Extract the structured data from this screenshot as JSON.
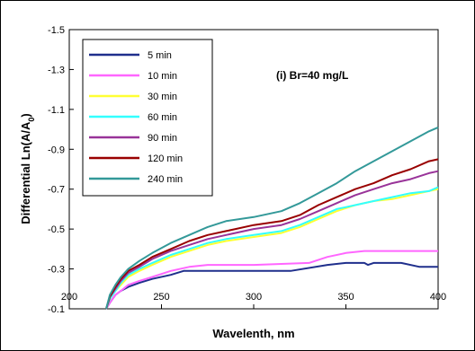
{
  "chart_data": {
    "type": "line",
    "title": "",
    "annotation": "(i) Br=40 mg/L",
    "xlabel": "Wavelenth, nm",
    "ylabel_main": "Differential  Ln(A/A",
    "ylabel_sub": "0",
    "ylabel_end": ")",
    "xlim": [
      200,
      400
    ],
    "ylim": [
      -1.5,
      -0.1
    ],
    "y_inverted": true,
    "x_ticks": [
      {
        "value": 200,
        "label": "200"
      },
      {
        "value": 250,
        "label": "250"
      },
      {
        "value": 300,
        "label": "300"
      },
      {
        "value": 350,
        "label": "350"
      },
      {
        "value": 400,
        "label": "400"
      }
    ],
    "y_ticks": [
      {
        "value": -1.5,
        "label": "-1.5"
      },
      {
        "value": -1.3,
        "label": "-1.3"
      },
      {
        "value": -1.1,
        "label": "-1.1"
      },
      {
        "value": -0.9,
        "label": "-0.9"
      },
      {
        "value": -0.7,
        "label": "-0.7"
      },
      {
        "value": -0.5,
        "label": "-0.5"
      },
      {
        "value": -0.3,
        "label": "-0.3"
      },
      {
        "value": -0.1,
        "label": "-0.1"
      }
    ],
    "grid": false,
    "legend_position": "top-left",
    "series": [
      {
        "name": "5 min",
        "color": "#1f2f8c",
        "x": [
          220,
          222,
          225,
          228,
          232,
          238,
          245,
          255,
          262,
          270,
          300,
          320,
          340,
          350,
          360,
          362,
          365,
          380,
          390,
          400
        ],
        "y": [
          -0.08,
          -0.13,
          -0.17,
          -0.19,
          -0.21,
          -0.23,
          -0.25,
          -0.27,
          -0.29,
          -0.29,
          -0.29,
          -0.29,
          -0.32,
          -0.33,
          -0.33,
          -0.32,
          -0.33,
          -0.33,
          -0.31,
          -0.31
        ]
      },
      {
        "name": "10 min",
        "color": "#ff66ff",
        "x": [
          220,
          222,
          225,
          228,
          232,
          238,
          245,
          255,
          265,
          275,
          290,
          300,
          330,
          340,
          350,
          360,
          380,
          400
        ],
        "y": [
          -0.08,
          -0.13,
          -0.17,
          -0.19,
          -0.22,
          -0.24,
          -0.26,
          -0.29,
          -0.31,
          -0.32,
          -0.32,
          -0.32,
          -0.33,
          -0.36,
          -0.38,
          -0.39,
          -0.39,
          -0.39
        ]
      },
      {
        "name": "30 min",
        "color": "#ffff33",
        "x": [
          220,
          222,
          225,
          228,
          232,
          238,
          245,
          255,
          265,
          275,
          285,
          300,
          315,
          325,
          335,
          345,
          355,
          365,
          375,
          385,
          395,
          400
        ],
        "y": [
          -0.08,
          -0.15,
          -0.19,
          -0.22,
          -0.26,
          -0.29,
          -0.32,
          -0.36,
          -0.39,
          -0.42,
          -0.44,
          -0.46,
          -0.48,
          -0.51,
          -0.55,
          -0.59,
          -0.62,
          -0.64,
          -0.65,
          -0.67,
          -0.69,
          -0.7
        ]
      },
      {
        "name": "60 min",
        "color": "#33ffff",
        "x": [
          220,
          222,
          225,
          228,
          232,
          238,
          245,
          255,
          265,
          275,
          285,
          300,
          315,
          325,
          335,
          345,
          355,
          365,
          375,
          385,
          395,
          400
        ],
        "y": [
          -0.08,
          -0.15,
          -0.19,
          -0.23,
          -0.27,
          -0.3,
          -0.33,
          -0.37,
          -0.4,
          -0.43,
          -0.45,
          -0.47,
          -0.49,
          -0.52,
          -0.56,
          -0.6,
          -0.62,
          -0.64,
          -0.66,
          -0.68,
          -0.69,
          -0.71
        ]
      },
      {
        "name": "90 min",
        "color": "#993399",
        "x": [
          220,
          222,
          225,
          228,
          232,
          238,
          245,
          255,
          265,
          275,
          285,
          300,
          315,
          325,
          335,
          345,
          355,
          365,
          375,
          385,
          395,
          400
        ],
        "y": [
          -0.08,
          -0.16,
          -0.2,
          -0.24,
          -0.28,
          -0.31,
          -0.35,
          -0.39,
          -0.42,
          -0.45,
          -0.47,
          -0.5,
          -0.52,
          -0.55,
          -0.59,
          -0.63,
          -0.67,
          -0.7,
          -0.73,
          -0.75,
          -0.78,
          -0.79
        ]
      },
      {
        "name": "120 min",
        "color": "#990000",
        "x": [
          220,
          222,
          225,
          228,
          232,
          238,
          245,
          255,
          265,
          275,
          285,
          300,
          315,
          325,
          335,
          345,
          355,
          365,
          375,
          385,
          395,
          400
        ],
        "y": [
          -0.08,
          -0.16,
          -0.21,
          -0.25,
          -0.29,
          -0.32,
          -0.36,
          -0.4,
          -0.44,
          -0.47,
          -0.49,
          -0.52,
          -0.54,
          -0.57,
          -0.62,
          -0.66,
          -0.7,
          -0.73,
          -0.77,
          -0.8,
          -0.84,
          -0.85
        ]
      },
      {
        "name": "240 min",
        "color": "#339999",
        "x": [
          220,
          222,
          225,
          228,
          232,
          238,
          245,
          255,
          265,
          275,
          285,
          300,
          315,
          325,
          335,
          345,
          355,
          365,
          375,
          385,
          395,
          400
        ],
        "y": [
          -0.08,
          -0.17,
          -0.22,
          -0.26,
          -0.3,
          -0.34,
          -0.38,
          -0.43,
          -0.47,
          -0.51,
          -0.54,
          -0.56,
          -0.59,
          -0.63,
          -0.68,
          -0.73,
          -0.79,
          -0.84,
          -0.89,
          -0.94,
          -0.99,
          -1.01
        ]
      }
    ]
  }
}
